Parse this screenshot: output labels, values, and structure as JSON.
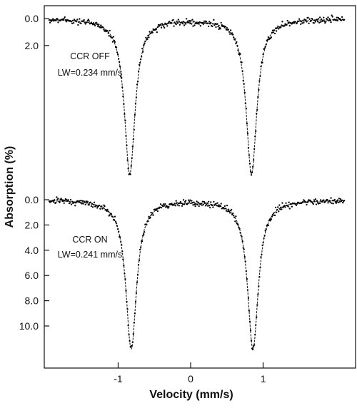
{
  "chart_data": {
    "type": "scatter",
    "xlabel": "Velocity (mm/s)",
    "ylabel": "Absorption (%)",
    "xlim": [
      -2.0,
      2.2
    ],
    "x_ticks": [
      "-1",
      "0",
      "1"
    ],
    "x_tick_values": [
      -1,
      0,
      1
    ],
    "grid": false,
    "legend": "none",
    "panels": [
      {
        "name": "top",
        "annotation": [
          "CCR OFF",
          "LW=0.234 mm/s"
        ],
        "y_ticks": [
          "0.0",
          "2.0"
        ],
        "y_tick_values": [
          0.0,
          2.0
        ],
        "ylim_inverted": [
          -0.5,
          12.0
        ],
        "peaks": [
          {
            "x": -0.84,
            "depth": 11.5
          },
          {
            "x": 0.84,
            "depth": 11.5
          }
        ],
        "linewidth_mm_s": 0.234
      },
      {
        "name": "bottom",
        "annotation": [
          "CCR ON",
          "LW=0.241 mm/s"
        ],
        "y_ticks": [
          "0.0",
          "2.0",
          "4.0",
          "6.0",
          "8.0",
          "10.0"
        ],
        "y_tick_values": [
          0.0,
          2.0,
          4.0,
          6.0,
          8.0,
          10.0
        ],
        "ylim_inverted": [
          -0.5,
          12.0
        ],
        "peaks": [
          {
            "x": -0.82,
            "depth": 11.8
          },
          {
            "x": 0.86,
            "depth": 11.8
          }
        ],
        "linewidth_mm_s": 0.241
      }
    ]
  }
}
